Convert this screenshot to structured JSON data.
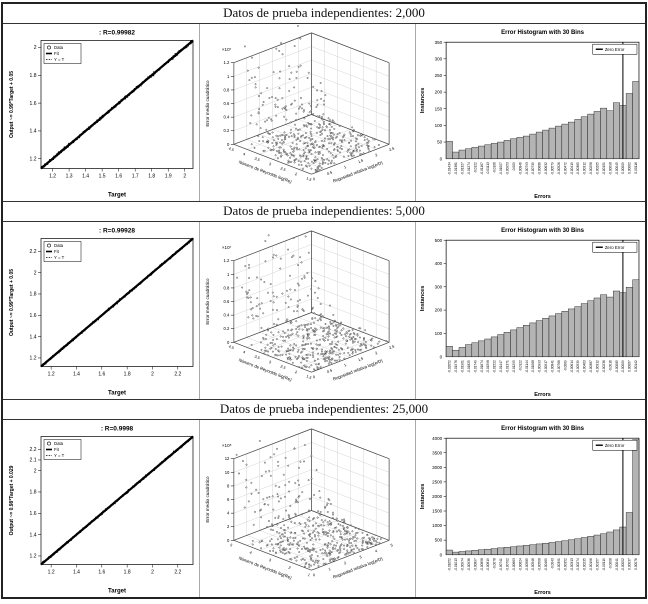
{
  "chart_data": [
    {
      "title": "Datos de prueba independientes: 2,000",
      "regression": {
        "type": "scatter",
        "title": ": R=0.99982",
        "xlabel": "Target",
        "ylabel": "Output ~= 0.99*Target + 0.05",
        "legend": [
          "Data",
          "Fit",
          "Y = T"
        ],
        "xlim": [
          1.13,
          2.05
        ],
        "xticks": [
          1.2,
          1.3,
          1.4,
          1.5,
          1.6,
          1.7,
          1.8,
          1.9,
          2
        ],
        "yticks": [
          1.2,
          1.4,
          1.6,
          1.8,
          2
        ]
      },
      "surface3d": {
        "type": "scatter3d",
        "scale_label": "×10⁷",
        "zlabel": "Error medio cuadrático",
        "xlabel": "Número de Reynolds log(Re)",
        "ylabel": "Rugosidad relativa log(e/D)",
        "zticks": [
          0,
          0.2,
          0.4,
          0.6,
          0.8,
          1,
          1.2
        ],
        "xticks": [
          1.5,
          2,
          2.5,
          3,
          3.5,
          4,
          4.5
        ],
        "yticks": [
          0,
          0.5,
          1,
          1.5,
          2,
          2.5
        ]
      },
      "histogram": {
        "type": "bar",
        "title": "Error Histogram with 30 Bins",
        "xlabel": "Errors",
        "ylabel": "Instances",
        "legend": "Zero Error",
        "ylim": [
          0,
          350
        ],
        "yticks": [
          50,
          100,
          150,
          200,
          250,
          300,
          350
        ],
        "zero_bin_index": 27,
        "bins": [
          "-0.01434",
          "-0.01381",
          "-0.01327",
          "-0.01274",
          "-0.0122",
          "-0.01167",
          "-0.01113",
          "-0.0106",
          "-0.01007",
          "-0.00953",
          "-0.009",
          "-0.00846",
          "-0.00793",
          "-0.00739",
          "-0.00686",
          "-0.00632",
          "-0.00579",
          "-0.00526",
          "-0.00472",
          "-0.00419",
          "-0.00365",
          "-0.00312",
          "-0.00258",
          "-0.00205",
          "-0.00151",
          "-0.00098",
          "-0.00045",
          "0.00009",
          "0.00062",
          "0.00116"
        ],
        "values": [
          52,
          20,
          26,
          30,
          34,
          38,
          42,
          46,
          50,
          55,
          60,
          64,
          68,
          74,
          80,
          86,
          92,
          98,
          104,
          110,
          118,
          126,
          134,
          142,
          152,
          144,
          168,
          160,
          196,
          232
        ]
      }
    },
    {
      "title": "Datos de prueba independientes: 5,000",
      "regression": {
        "type": "scatter",
        "title": ": R=0.99928",
        "xlabel": "Target",
        "ylabel": "Output ~= 0.99*Target + 0.05",
        "legend": [
          "Data",
          "Fit",
          "Y = T"
        ],
        "xlim": [
          1.12,
          2.32
        ],
        "xticks": [
          1.2,
          1.4,
          1.6,
          1.8,
          2,
          2.2
        ],
        "yticks": [
          1.2,
          1.4,
          1.6,
          1.8,
          2,
          2.2
        ]
      },
      "surface3d": {
        "type": "scatter3d",
        "scale_label": "×10⁷",
        "zlabel": "Error medio cuadrático",
        "xlabel": "Número de Reynolds log(Re)",
        "ylabel": "Rugosidad relativa log(e/D)",
        "zticks": [
          0,
          0.2,
          0.4,
          0.6,
          0.8,
          1,
          1.2
        ],
        "xticks": [
          1.5,
          2,
          2.5,
          3,
          3.5,
          4,
          4.5
        ],
        "yticks": [
          0,
          0.5,
          1,
          1.5,
          2,
          2.5
        ]
      },
      "histogram": {
        "type": "bar",
        "title": "Error Histogram with 30 Bins",
        "xlabel": "Errors",
        "ylabel": "Instances",
        "legend": "Zero Error",
        "ylim": [
          0,
          500
        ],
        "yticks": [
          100,
          200,
          300,
          400,
          500
        ],
        "zero_bin_index": 27,
        "bins": [
          "-0.02052",
          "-0.01976",
          "-0.01901",
          "-0.01825",
          "-0.01749",
          "-0.01674",
          "-0.01598",
          "-0.01522",
          "-0.01447",
          "-0.01371",
          "-0.01295",
          "-0.0122",
          "-0.01144",
          "-0.01068",
          "-0.00993",
          "-0.00917",
          "-0.00841",
          "-0.00766",
          "-0.0069",
          "-0.00614",
          "-0.00539",
          "-0.00463",
          "-0.00387",
          "-0.00312",
          "-0.00236",
          "-0.0016",
          "-0.00085",
          "-0.00009",
          "0.00067",
          "0.00142"
        ],
        "values": [
          45,
          28,
          40,
          52,
          60,
          68,
          76,
          85,
          95,
          105,
          115,
          125,
          135,
          145,
          155,
          165,
          175,
          185,
          195,
          205,
          215,
          228,
          240,
          252,
          266,
          256,
          282,
          275,
          298,
          330
        ]
      }
    },
    {
      "title": "Datos de prueba independientes: 25,000",
      "regression": {
        "type": "scatter",
        "title": ": R=0.9998",
        "xlabel": "Target",
        "ylabel": "Output ~= 0.98*Target + 0.029",
        "legend": [
          "Data",
          "Fit",
          "Y = T"
        ],
        "xlim": [
          1.12,
          2.32
        ],
        "xticks": [
          1.2,
          1.4,
          1.6,
          1.8,
          2,
          2.2
        ],
        "yticks": [
          1.2,
          1.4,
          1.6,
          1.8,
          2,
          2.1,
          2.2
        ]
      },
      "surface3d": {
        "type": "scatter3d",
        "scale_label": "×10⁵",
        "zlabel": "Error medio cuadrático",
        "xlabel": "Número de Reynolds log(Re)",
        "ylabel": "Rugosidad relativa log(e/D)",
        "zticks": [
          0,
          2,
          4,
          6,
          8,
          10,
          12
        ],
        "xticks": [
          1,
          2,
          3,
          4,
          5
        ],
        "yticks": [
          0,
          1,
          2,
          3,
          4,
          5
        ]
      },
      "histogram": {
        "type": "bar",
        "title": "Error Histogram with 30 Bins",
        "xlabel": "Errors",
        "ylabel": "Instances",
        "legend": "Zero Error",
        "ylim": [
          0,
          4000
        ],
        "yticks": [
          500,
          1000,
          1500,
          2000,
          2500,
          3000,
          3500,
          4000
        ],
        "zero_bin_index": 27,
        "bins": [
          "-0.01052",
          "-0.01013",
          "-0.00974",
          "-0.00936",
          "-0.00897",
          "-0.00858",
          "-0.00819",
          "-0.0078",
          "-0.00741",
          "-0.00702",
          "-0.00663",
          "-0.00624",
          "-0.00585",
          "-0.00546",
          "-0.00508",
          "-0.00469",
          "-0.0043",
          "-0.00391",
          "-0.00352",
          "-0.00313",
          "-0.00274",
          "-0.00235",
          "-0.00196",
          "-0.00157",
          "-0.00119",
          "-0.0008",
          "-0.00041",
          "-0.00002",
          "0.00037",
          "0.00076"
        ],
        "values": [
          160,
          90,
          110,
          130,
          150,
          170,
          190,
          210,
          235,
          255,
          275,
          300,
          320,
          345,
          370,
          395,
          420,
          450,
          480,
          515,
          550,
          590,
          630,
          675,
          720,
          780,
          850,
          950,
          1450,
          3950
        ]
      }
    }
  ]
}
